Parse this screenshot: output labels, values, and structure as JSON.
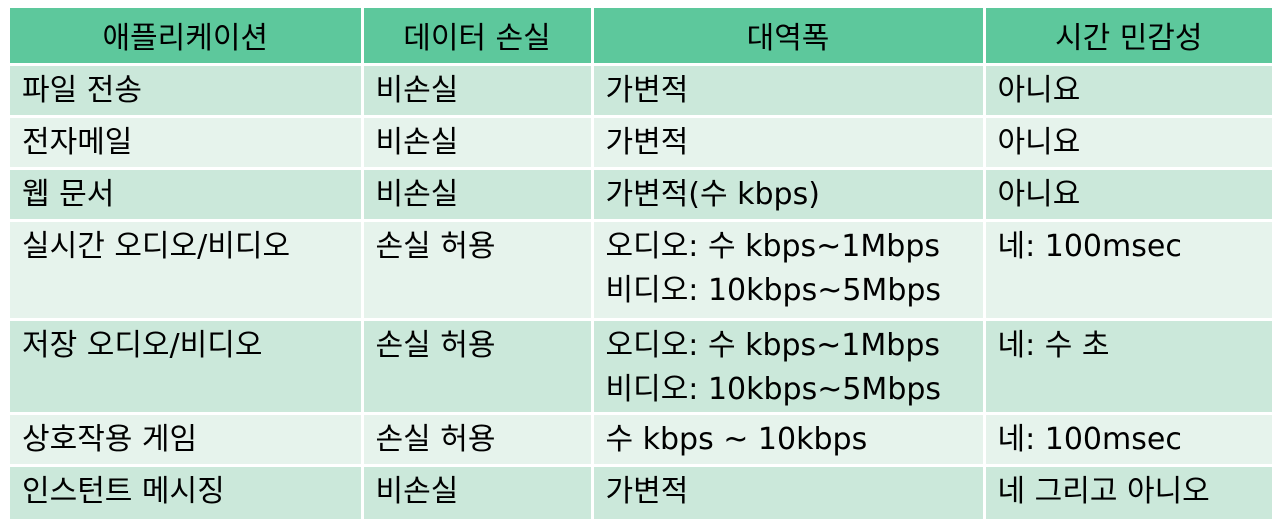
{
  "headers": [
    "애플리케이션",
    "데이터 손실",
    "대역폭",
    "시간 민감성"
  ],
  "rows": [
    {
      "app": "파일 전송",
      "loss": "비손실",
      "bw1": "가변적",
      "bw2": "",
      "time": "아니요"
    },
    {
      "app": "전자메일",
      "loss": "비손실",
      "bw1": "가변적",
      "bw2": "",
      "time": "아니요"
    },
    {
      "app": "웹 문서",
      "loss": "비손실",
      "bw1": "가변적(수 kbps)",
      "bw2": "",
      "time": "아니요"
    },
    {
      "app": "실시간 오디오/비디오",
      "loss": "손실 허용",
      "bw1": "오디오: 수 kbps~1Mbps",
      "bw2": "비디오: 10kbps~5Mbps",
      "time": "네: 100msec"
    },
    {
      "app": "저장 오디오/비디오",
      "loss": "손실 허용",
      "bw1": "오디오: 수 kbps~1Mbps",
      "bw2": "비디오: 10kbps~5Mbps",
      "time": "네: 수 초"
    },
    {
      "app": "상호작용 게임",
      "loss": "손실 허용",
      "bw1": "수 kbps ~ 10kbps",
      "bw2": "",
      "time": "네: 100msec"
    },
    {
      "app": "인스턴트 메시징",
      "loss": "비손실",
      "bw1": "가변적",
      "bw2": "",
      "time": "네 그리고 아니오"
    }
  ],
  "colors": {
    "header": "#5dc89c",
    "row_odd": "#cbe8da",
    "row_even": "#e6f3ec",
    "grid": "#ffffff"
  }
}
